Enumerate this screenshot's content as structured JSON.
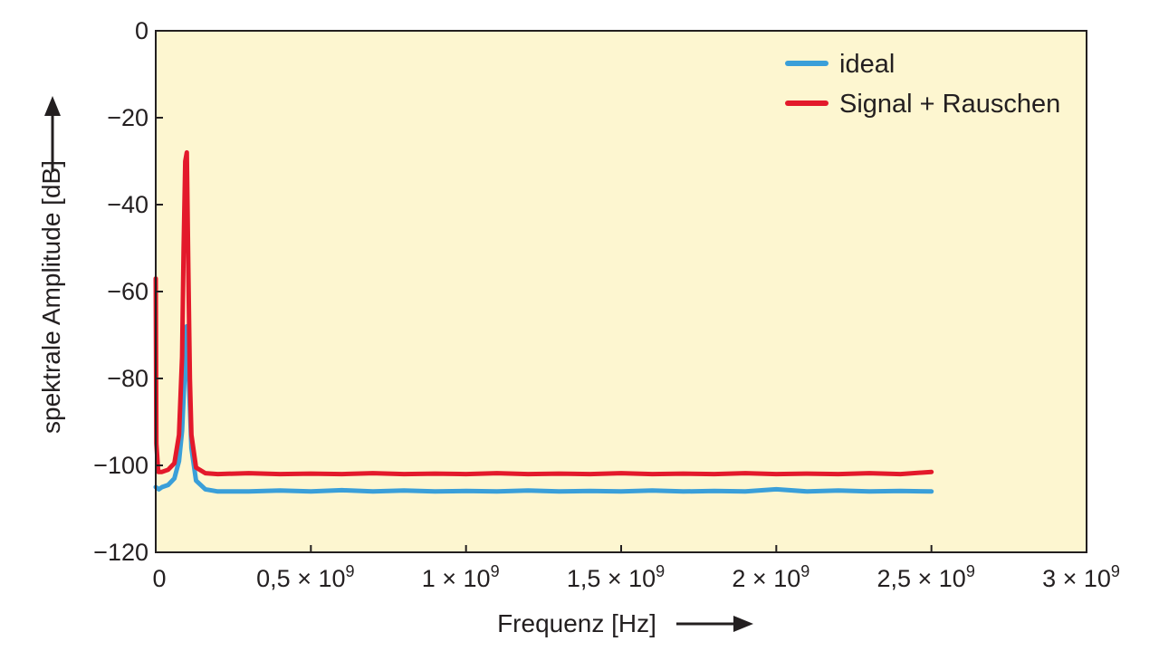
{
  "chart_data": {
    "type": "line",
    "xlabel": "Frequenz [Hz]",
    "ylabel": "spektrale Amplitude [dB]",
    "xlim": [
      0,
      3000000000
    ],
    "ylim": [
      -120,
      0
    ],
    "x_ticks": [
      {
        "value": 0,
        "mantissa": "0",
        "exp": ""
      },
      {
        "value": 500000000,
        "mantissa": "0,5",
        "exp": "9"
      },
      {
        "value": 1000000000,
        "mantissa": "1",
        "exp": "9"
      },
      {
        "value": 1500000000,
        "mantissa": "1,5",
        "exp": "9"
      },
      {
        "value": 2000000000,
        "mantissa": "2",
        "exp": "9"
      },
      {
        "value": 2500000000,
        "mantissa": "2,5",
        "exp": "9"
      },
      {
        "value": 3000000000,
        "mantissa": "3",
        "exp": "9"
      }
    ],
    "y_ticks": [
      {
        "value": 0,
        "label": "0"
      },
      {
        "value": -20,
        "label": "−20"
      },
      {
        "value": -40,
        "label": "−40"
      },
      {
        "value": -60,
        "label": "−60"
      },
      {
        "value": -80,
        "label": "−80"
      },
      {
        "value": -100,
        "label": "−100"
      },
      {
        "value": -120,
        "label": "−120"
      }
    ],
    "grid": false,
    "legend_position": "top-right",
    "background_color": "#fdf6d0",
    "series": [
      {
        "name": "ideal",
        "color": "#3a9fd9",
        "x": [
          0,
          10000000,
          20000000,
          40000000,
          60000000,
          75000000,
          85000000,
          95000000,
          100000000,
          105000000,
          115000000,
          130000000,
          160000000,
          200000000,
          300000000,
          400000000,
          500000000,
          600000000,
          700000000,
          800000000,
          900000000,
          1000000000,
          1100000000,
          1200000000,
          1300000000,
          1400000000,
          1500000000,
          1600000000,
          1700000000,
          1800000000,
          1900000000,
          2000000000,
          2100000000,
          2200000000,
          2300000000,
          2400000000,
          2500000000
        ],
        "y": [
          -105,
          -105.5,
          -105,
          -104.5,
          -103,
          -99,
          -92,
          -76,
          -68,
          -77,
          -96,
          -103.5,
          -105.5,
          -106,
          -106,
          -105.8,
          -106,
          -105.7,
          -106,
          -105.8,
          -106,
          -105.9,
          -106,
          -105.8,
          -106,
          -105.9,
          -106,
          -105.8,
          -106,
          -105.9,
          -106,
          -105.5,
          -106,
          -105.8,
          -106,
          -105.9,
          -106
        ]
      },
      {
        "name": "Signal + Rauschen",
        "color": "#e3192b",
        "x": [
          0,
          2000000,
          8000000,
          20000000,
          40000000,
          60000000,
          75000000,
          85000000,
          90000000,
          95000000,
          100000000,
          105000000,
          110000000,
          115000000,
          130000000,
          160000000,
          200000000,
          300000000,
          400000000,
          500000000,
          600000000,
          700000000,
          800000000,
          900000000,
          1000000000,
          1100000000,
          1200000000,
          1300000000,
          1400000000,
          1500000000,
          1600000000,
          1700000000,
          1800000000,
          1900000000,
          2000000000,
          2100000000,
          2200000000,
          2300000000,
          2400000000,
          2500000000
        ],
        "y": [
          -57,
          -95,
          -101.5,
          -101.5,
          -101,
          -99.5,
          -93,
          -75,
          -50,
          -30,
          -28,
          -55,
          -80,
          -93,
          -100.5,
          -101.8,
          -102,
          -101.8,
          -102,
          -101.9,
          -102,
          -101.8,
          -102,
          -101.9,
          -102,
          -101.8,
          -102,
          -101.9,
          -102,
          -101.8,
          -102,
          -101.9,
          -102,
          -101.8,
          -102,
          -101.9,
          -102,
          -101.8,
          -102,
          -101.5
        ]
      }
    ]
  }
}
